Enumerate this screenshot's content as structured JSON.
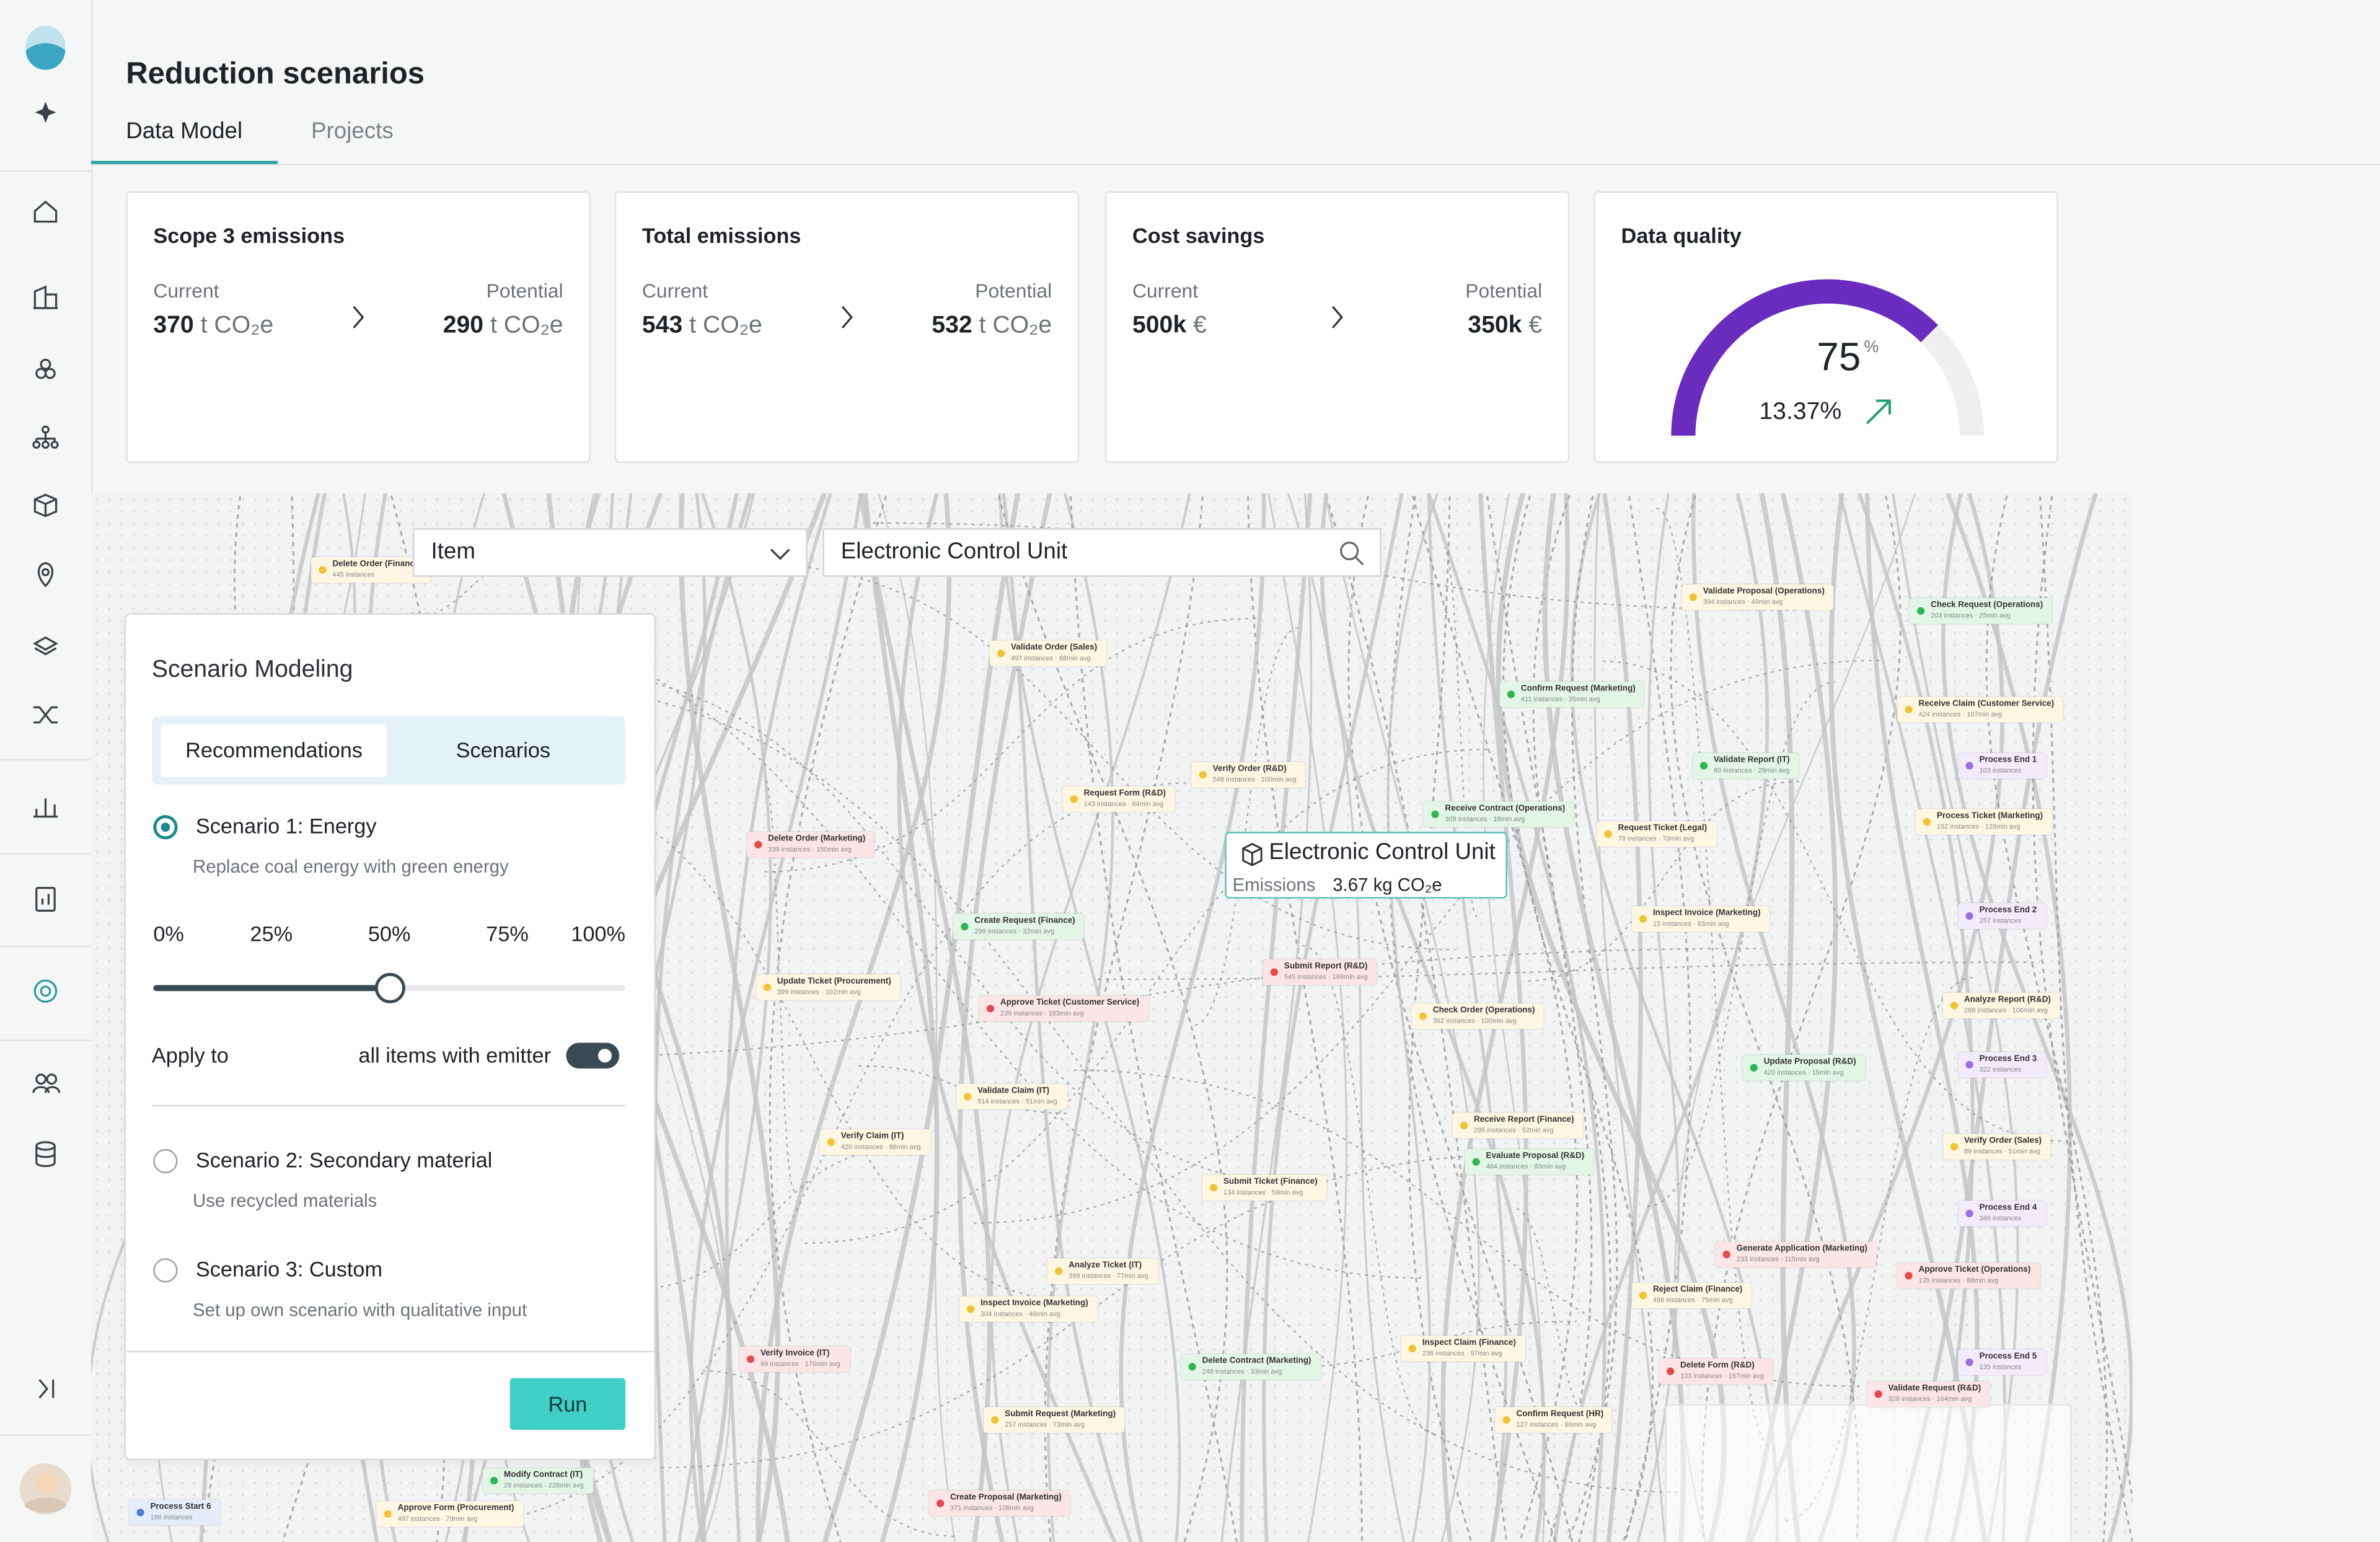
{
  "header": {
    "title": "Reduction scenarios",
    "tabs": [
      "Data Model",
      "Projects"
    ]
  },
  "kpis": [
    {
      "title": "Scope 3 emissions",
      "current_label": "Current",
      "current_value": "370",
      "current_unit": "t CO₂e",
      "potential_label": "Potential",
      "potential_value": "290",
      "potential_unit": "t CO₂e"
    },
    {
      "title": "Total emissions",
      "current_label": "Current",
      "current_value": "543",
      "current_unit": "t CO₂e",
      "potential_label": "Potential",
      "potential_value": "532",
      "potential_unit": "t CO₂e"
    },
    {
      "title": "Cost savings",
      "current_label": "Current",
      "current_value": "500k",
      "current_unit": "€",
      "potential_label": "Potential",
      "potential_value": "350k",
      "potential_unit": "€"
    }
  ],
  "data_quality": {
    "title": "Data quality",
    "value": 75,
    "unit": "%",
    "range": [
      0,
      100
    ],
    "change": "13.37%",
    "color": "#6a2bbf"
  },
  "filter": {
    "field": "Item",
    "search": "Electronic Control Unit"
  },
  "scenario_panel": {
    "title": "Scenario Modeling",
    "tabs": [
      "Recommendations",
      "Scenarios"
    ],
    "scenarios": [
      {
        "name": "Scenario 1: Energy",
        "description": "Replace coal energy with green energy",
        "selected": true
      },
      {
        "name": "Scenario 2: Secondary material",
        "description": "Use recycled materials",
        "selected": false
      },
      {
        "name": "Scenario 3: Custom",
        "description": "Set up own scenario with qualitative input",
        "selected": false
      }
    ],
    "slider": {
      "ticks": [
        {
          "value": 0,
          "label": "0%"
        },
        {
          "value": 25,
          "label": "25%"
        },
        {
          "value": 50,
          "label": "50%"
        },
        {
          "value": 75,
          "label": "75%"
        },
        {
          "value": 100,
          "label": "100%"
        }
      ],
      "range": [
        0,
        100
      ],
      "value": 50
    },
    "apply_label": "Apply to",
    "apply_target": "all items with emitter",
    "apply_enabled": true,
    "run": "Run"
  },
  "tooltip": {
    "title": "Electronic Control Unit",
    "label": "Emissions",
    "value": "3.67 kg CO₂e"
  },
  "process_nodes": [
    {
      "label": "Validate Order (Sales)",
      "detail": "497 instances · 88min avg",
      "color": "#f2c230"
    },
    {
      "label": "Request Form (R&D)",
      "detail": "143 instances · 64min avg",
      "color": "#f2c230"
    },
    {
      "label": "Verify Order (R&D)",
      "detail": "548 instances · 100min avg",
      "color": "#f2c230"
    },
    {
      "label": "Delete Order (Marketing)",
      "detail": "339 instances · 150min avg",
      "color": "#e5484d"
    },
    {
      "label": "Create Request (Finance)",
      "detail": "299 instances · 32min avg",
      "color": "#2fb552"
    },
    {
      "label": "Update Ticket (Procurement)",
      "detail": "399 instances · 102min avg",
      "color": "#f2c230"
    },
    {
      "label": "Approve Ticket (Customer Service)",
      "detail": "239 instances · 163min avg",
      "color": "#e5484d"
    },
    {
      "label": "Submit Report (R&D)",
      "detail": "545 instances · 169min avg",
      "color": "#e5484d"
    },
    {
      "label": "Check Order (Operations)",
      "detail": "362 instances · 100min avg",
      "color": "#f2c230"
    },
    {
      "label": "Confirm Request (Marketing)",
      "detail": "411 instances · 35min avg",
      "color": "#2fb552"
    },
    {
      "label": "Receive Contract (Operations)",
      "detail": "309 instances · 18min avg",
      "color": "#2fb552"
    },
    {
      "label": "Request Ticket (Legal)",
      "detail": "78 instances · 70min avg",
      "color": "#f2c230"
    },
    {
      "label": "Validate Proposal (Operations)",
      "detail": "394 instances · 49min avg",
      "color": "#f2c230"
    },
    {
      "label": "Check Request (Operations)",
      "detail": "203 instances · 25min avg",
      "color": "#2fb552"
    },
    {
      "label": "Receive Claim (Customer Service)",
      "detail": "424 instances · 107min avg",
      "color": "#f2c230"
    },
    {
      "label": "Validate Report (IT)",
      "detail": "80 instances · 29min avg",
      "color": "#2fb552"
    },
    {
      "label": "Inspect Invoice (Marketing)",
      "detail": "15 instances · 83min avg",
      "color": "#f2c230"
    },
    {
      "label": "Validate Claim (IT)",
      "detail": "514 instances · 51min avg",
      "color": "#f2c230"
    },
    {
      "label": "Verify Claim (IT)",
      "detail": "420 instances · 86min avg",
      "color": "#f2c230"
    },
    {
      "label": "Submit Ticket (Finance)",
      "detail": "134 instances · 59min avg",
      "color": "#f2c230"
    },
    {
      "label": "Receive Report (Finance)",
      "detail": "295 instances · 52min avg",
      "color": "#f2c230"
    },
    {
      "label": "Evaluate Proposal (R&D)",
      "detail": "464 instances · 83min avg",
      "color": "#2fb552"
    },
    {
      "label": "Update Proposal (R&D)",
      "detail": "420 instances · 15min avg",
      "color": "#2fb552"
    },
    {
      "label": "Analyze Ticket (IT)",
      "detail": "399 instances · 77min avg",
      "color": "#f2c230"
    },
    {
      "label": "Inspect Invoice (Marketing)",
      "detail": "304 instances · 46min avg",
      "color": "#f2c230"
    },
    {
      "label": "Verify Invoice (IT)",
      "detail": "69 instances · 176min avg",
      "color": "#e5484d"
    },
    {
      "label": "Delete Contract (Marketing)",
      "detail": "248 instances · 33min avg",
      "color": "#2fb552"
    },
    {
      "label": "Inspect Claim (Finance)",
      "detail": "238 instances · 97min avg",
      "color": "#f2c230"
    },
    {
      "label": "Generate Application (Marketing)",
      "detail": "233 instances · 115min avg",
      "color": "#e5484d"
    },
    {
      "label": "Reject Claim (Finance)",
      "detail": "496 instances · 75min avg",
      "color": "#f2c230"
    },
    {
      "label": "Approve Ticket (Operations)",
      "detail": "135 instances · 88min avg",
      "color": "#e5484d"
    },
    {
      "label": "Delete Form (R&D)",
      "detail": "103 instances · 167min avg",
      "color": "#e5484d"
    },
    {
      "label": "Validate Request (R&D)",
      "detail": "326 instances · 164min avg",
      "color": "#e5484d"
    },
    {
      "label": "Submit Request (Marketing)",
      "detail": "257 instances · 73min avg",
      "color": "#f2c230"
    },
    {
      "label": "Confirm Request (HR)",
      "detail": "127 instances · 86min avg",
      "color": "#f2c230"
    },
    {
      "label": "Create Proposal (Marketing)",
      "detail": "371 instances · 108min avg",
      "color": "#e5484d"
    },
    {
      "label": "Modify Contract (IT)",
      "detail": "29 instances · 226min avg",
      "color": "#2fb552"
    },
    {
      "label": "Approve Form (Procurement)",
      "detail": "497 instances · 79min avg",
      "color": "#f2c230"
    },
    {
      "label": "Process Start 6",
      "detail": "186 instances",
      "color": "#4a7fd8"
    },
    {
      "label": "Process End 1",
      "detail": "103 instances",
      "color": "#9b6de0"
    },
    {
      "label": "Process End 2",
      "detail": "257 instances",
      "color": "#9b6de0"
    },
    {
      "label": "Analyze Report (R&D)",
      "detail": "268 instances · 106min avg",
      "color": "#f2c230"
    },
    {
      "label": "Process End 3",
      "detail": "322 instances",
      "color": "#9b6de0"
    },
    {
      "label": "Verify Order (Sales)",
      "detail": "89 instances · 51min avg",
      "color": "#f2c230"
    },
    {
      "label": "Process End 4",
      "detail": "346 instances",
      "color": "#9b6de0"
    },
    {
      "label": "Process End 5",
      "detail": "135 instances",
      "color": "#9b6de0"
    },
    {
      "label": "Process Ticket (Marketing)",
      "detail": "152 instances · 126min avg",
      "color": "#f2c230"
    },
    {
      "label": "Delete Order (Finance)",
      "detail": "445 instances",
      "color": "#f2c230"
    }
  ]
}
